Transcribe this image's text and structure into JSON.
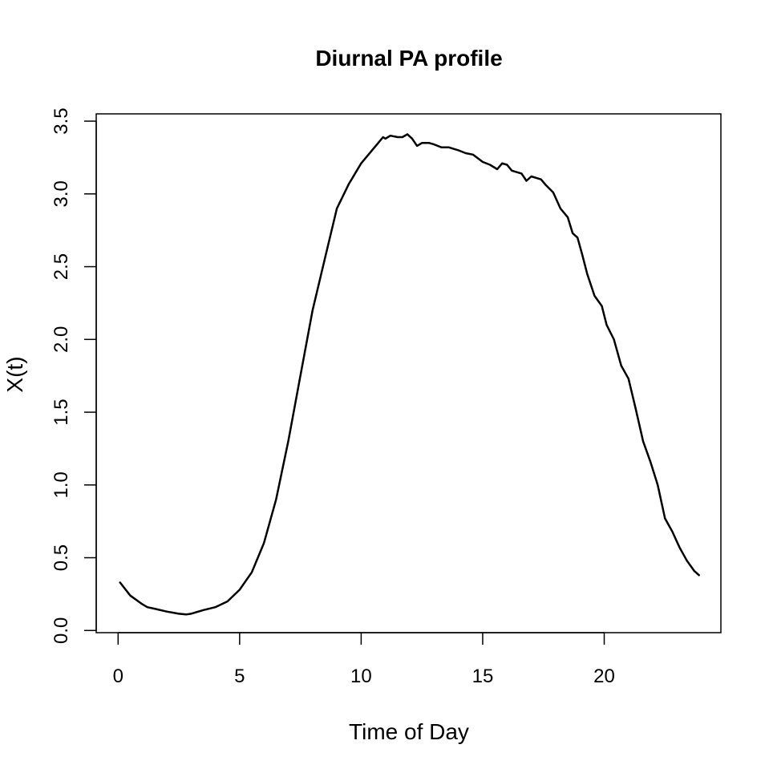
{
  "chart_data": {
    "type": "line",
    "title": "Diurnal PA profile",
    "xlabel": "Time of Day",
    "ylabel": "X(t)",
    "xlim": [
      -0.9,
      24.8
    ],
    "ylim": [
      -0.015,
      3.55
    ],
    "xticks": [
      0,
      5,
      10,
      15,
      20
    ],
    "yticks": [
      0.0,
      0.5,
      1.0,
      1.5,
      2.0,
      2.5,
      3.0,
      3.5
    ],
    "xtick_labels": [
      "0",
      "5",
      "10",
      "15",
      "20"
    ],
    "ytick_labels": [
      "0.0",
      "0.5",
      "1.0",
      "1.5",
      "2.0",
      "2.5",
      "3.0",
      "3.5"
    ],
    "grid": false,
    "line_color": "#000000",
    "series": [
      {
        "x": [
          0.08,
          0.5,
          1.0,
          1.2,
          1.5,
          2.0,
          2.5,
          2.8,
          3.0,
          3.5,
          4.0,
          4.5,
          5.0,
          5.5,
          6.0,
          6.5,
          7.0,
          7.5,
          8.0,
          8.5,
          9.0,
          9.5,
          10.0,
          10.3,
          10.6,
          10.9,
          11.0,
          11.2,
          11.5,
          11.7,
          11.9,
          12.1,
          12.3,
          12.5,
          12.8,
          13.0,
          13.3,
          13.6,
          14.0,
          14.3,
          14.6,
          15.0,
          15.3,
          15.6,
          15.8,
          16.0,
          16.2,
          16.6,
          16.8,
          17.0,
          17.4,
          17.6,
          17.9,
          18.2,
          18.5,
          18.7,
          18.9,
          19.1,
          19.3,
          19.6,
          19.9,
          20.1,
          20.4,
          20.7,
          21.0,
          21.3,
          21.6,
          21.9,
          22.2,
          22.5,
          22.8,
          23.1,
          23.4,
          23.7,
          23.9
        ],
        "y": [
          0.33,
          0.24,
          0.18,
          0.16,
          0.15,
          0.13,
          0.115,
          0.11,
          0.115,
          0.14,
          0.16,
          0.2,
          0.28,
          0.4,
          0.6,
          0.9,
          1.3,
          1.75,
          2.2,
          2.55,
          2.9,
          3.07,
          3.21,
          3.27,
          3.33,
          3.39,
          3.38,
          3.4,
          3.39,
          3.39,
          3.41,
          3.38,
          3.33,
          3.35,
          3.35,
          3.34,
          3.32,
          3.32,
          3.3,
          3.28,
          3.27,
          3.22,
          3.2,
          3.17,
          3.21,
          3.2,
          3.16,
          3.14,
          3.09,
          3.12,
          3.1,
          3.06,
          3.01,
          2.9,
          2.84,
          2.73,
          2.7,
          2.58,
          2.45,
          2.3,
          2.23,
          2.1,
          2.0,
          1.82,
          1.73,
          1.52,
          1.3,
          1.16,
          1.0,
          0.77,
          0.68,
          0.57,
          0.48,
          0.41,
          0.38
        ]
      }
    ]
  }
}
